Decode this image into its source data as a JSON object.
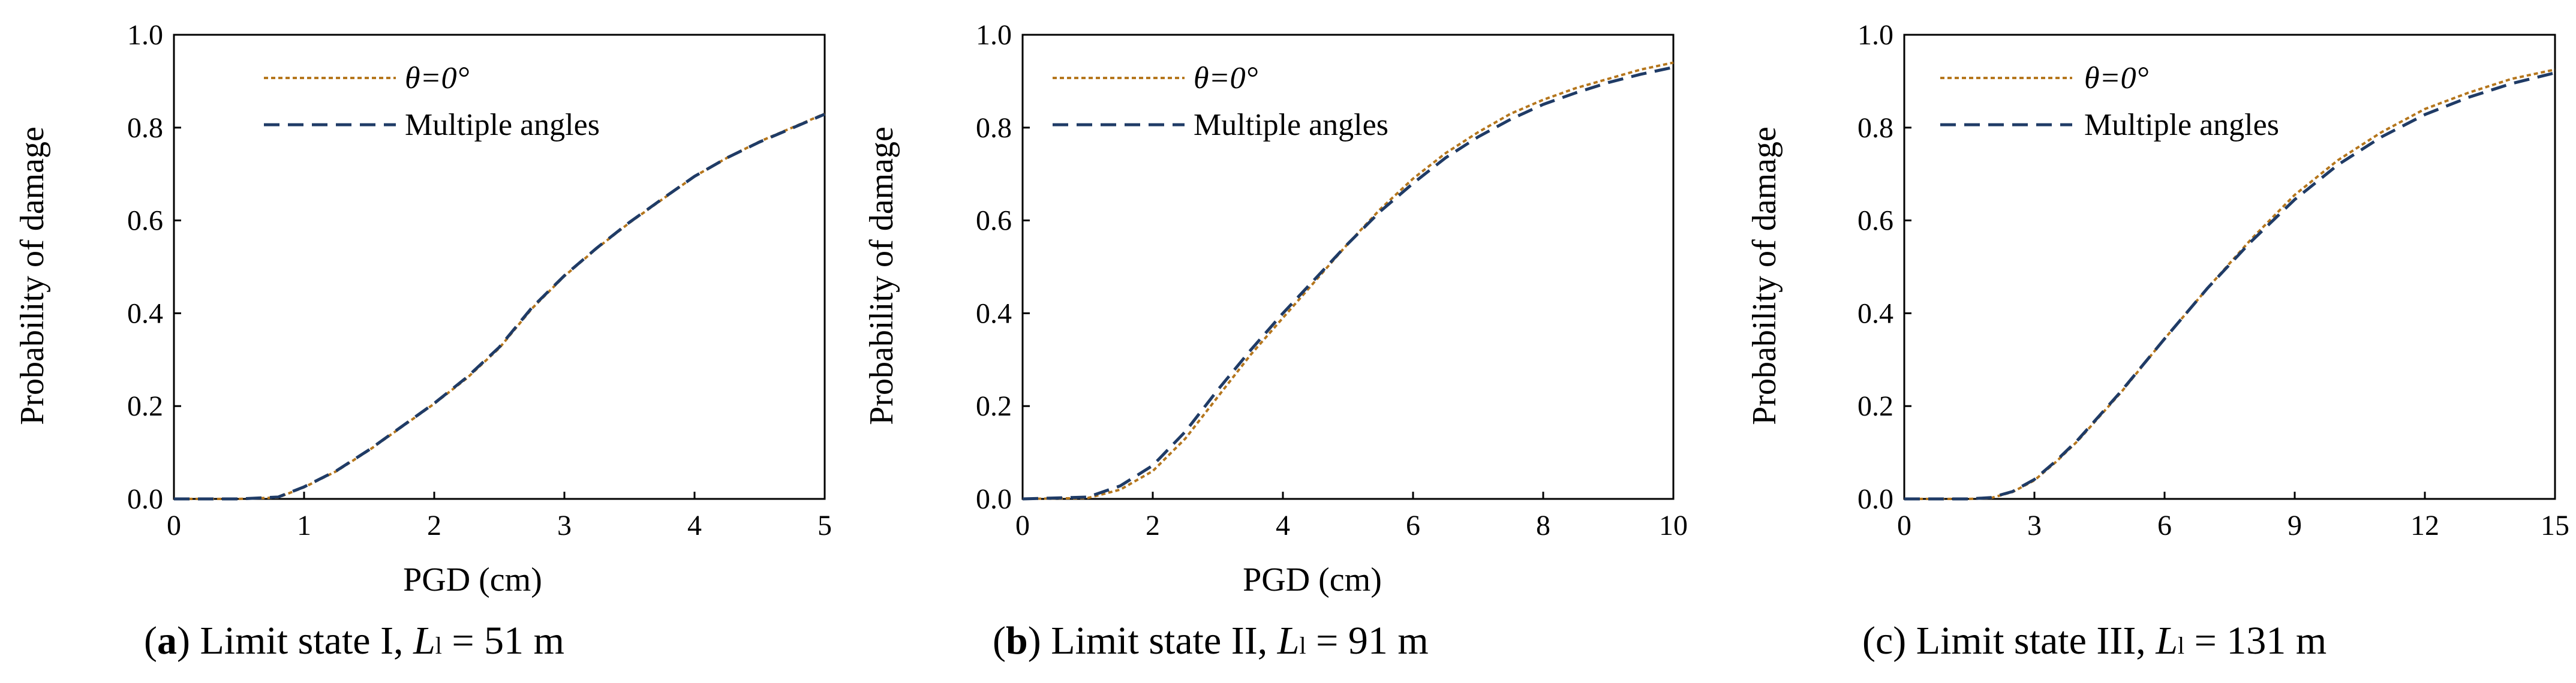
{
  "colors": {
    "theta0": "#b5761c",
    "multiple": "#1f3b66"
  },
  "chart_data": [
    {
      "type": "line",
      "caption": {
        "letter": "a",
        "text": " Limit state I, ",
        "L": "L",
        "sub": "l",
        "value": " = 51 m"
      },
      "xlabel": "PGD (cm)",
      "ylabel": "Probability of damage",
      "xlim": [
        0,
        5
      ],
      "ylim": [
        0,
        1.0
      ],
      "xticks": [
        0,
        1,
        2,
        3,
        4,
        5
      ],
      "xtick_labels": [
        "0",
        "1",
        "2",
        "3",
        "4",
        "5"
      ],
      "yticks": [
        0,
        0.2,
        0.4,
        0.6,
        0.8,
        1.0
      ],
      "ytick_labels": [
        "0.0",
        "0.2",
        "0.4",
        "0.6",
        "0.8",
        "1.0"
      ],
      "legend": [
        "θ=0°",
        "Multiple angles"
      ],
      "series": [
        {
          "name": "θ=0°",
          "x": [
            0,
            0.5,
            0.8,
            1.0,
            1.25,
            1.5,
            1.75,
            2.0,
            2.25,
            2.5,
            2.75,
            3.0,
            3.25,
            3.5,
            3.75,
            4.0,
            4.25,
            4.5,
            4.75,
            5.0
          ],
          "y": [
            0,
            0,
            0.003,
            0.025,
            0.06,
            0.105,
            0.155,
            0.205,
            0.26,
            0.325,
            0.41,
            0.48,
            0.54,
            0.595,
            0.645,
            0.695,
            0.735,
            0.77,
            0.8,
            0.83
          ]
        },
        {
          "name": "Multiple angles",
          "x": [
            0,
            0.5,
            0.8,
            1.0,
            1.25,
            1.5,
            1.75,
            2.0,
            2.25,
            2.5,
            2.75,
            3.0,
            3.25,
            3.5,
            3.75,
            4.0,
            4.25,
            4.5,
            4.75,
            5.0
          ],
          "y": [
            0,
            0,
            0.004,
            0.026,
            0.061,
            0.106,
            0.156,
            0.206,
            0.262,
            0.327,
            0.412,
            0.481,
            0.541,
            0.596,
            0.646,
            0.695,
            0.735,
            0.769,
            0.799,
            0.829
          ]
        }
      ]
    },
    {
      "type": "line",
      "caption": {
        "letter": "b",
        "text": " Limit state II, ",
        "L": "L",
        "sub": "l",
        "value": " = 91 m"
      },
      "xlabel": "PGD (cm)",
      "ylabel": "Probability of damage",
      "xlim": [
        0,
        10
      ],
      "ylim": [
        0,
        1.0
      ],
      "xticks": [
        0,
        2,
        4,
        6,
        8,
        10
      ],
      "xtick_labels": [
        "0",
        "2",
        "4",
        "6",
        "8",
        "10"
      ],
      "yticks": [
        0,
        0.2,
        0.4,
        0.6,
        0.8,
        1.0
      ],
      "ytick_labels": [
        "0.0",
        "0.2",
        "0.4",
        "0.6",
        "0.8",
        "1.0"
      ],
      "legend": [
        "θ=0°",
        "Multiple angles"
      ],
      "series": [
        {
          "name": "θ=0°",
          "x": [
            0,
            1.0,
            1.5,
            2.0,
            2.5,
            3.0,
            3.5,
            4.0,
            4.5,
            5.0,
            5.5,
            6.0,
            6.5,
            7.0,
            7.5,
            8.0,
            8.5,
            9.0,
            9.5,
            10.0
          ],
          "y": [
            0,
            0.002,
            0.02,
            0.06,
            0.13,
            0.22,
            0.31,
            0.39,
            0.47,
            0.55,
            0.625,
            0.69,
            0.745,
            0.79,
            0.83,
            0.86,
            0.885,
            0.905,
            0.925,
            0.94
          ]
        },
        {
          "name": "Multiple angles",
          "x": [
            0,
            1.0,
            1.5,
            2.0,
            2.5,
            3.0,
            3.5,
            4.0,
            4.5,
            5.0,
            5.5,
            6.0,
            6.5,
            7.0,
            7.5,
            8.0,
            8.5,
            9.0,
            9.5,
            10.0
          ],
          "y": [
            0,
            0.004,
            0.028,
            0.072,
            0.145,
            0.235,
            0.32,
            0.4,
            0.475,
            0.55,
            0.62,
            0.68,
            0.735,
            0.78,
            0.818,
            0.85,
            0.875,
            0.897,
            0.915,
            0.93
          ]
        }
      ]
    },
    {
      "type": "line",
      "caption": {
        "letter": "c",
        "text": " Limit state III, ",
        "L": "L",
        "sub": "l",
        "value": " = 131 m"
      },
      "xlabel": "",
      "ylabel": "Probability of damage",
      "xlim": [
        0,
        15
      ],
      "ylim": [
        0,
        1.0
      ],
      "xticks": [
        0,
        3,
        6,
        9,
        12,
        15
      ],
      "xtick_labels": [
        "0",
        "3",
        "6",
        "9",
        "12",
        "15"
      ],
      "yticks": [
        0,
        0.2,
        0.4,
        0.6,
        0.8,
        1.0
      ],
      "ytick_labels": [
        "0.0",
        "0.2",
        "0.4",
        "0.6",
        "0.8",
        "1.0"
      ],
      "legend": [
        "θ=0°",
        "Multiple angles"
      ],
      "series": [
        {
          "name": "θ=0°",
          "x": [
            0,
            1.5,
            2.0,
            2.5,
            3.0,
            3.5,
            4.0,
            5.0,
            6.0,
            7.0,
            8.0,
            9.0,
            10.0,
            11.0,
            12.0,
            13.0,
            14.0,
            15.0
          ],
          "y": [
            0,
            0,
            0.002,
            0.015,
            0.04,
            0.08,
            0.125,
            0.23,
            0.345,
            0.455,
            0.56,
            0.655,
            0.73,
            0.79,
            0.84,
            0.875,
            0.905,
            0.925
          ]
        },
        {
          "name": "Multiple angles",
          "x": [
            0,
            1.5,
            2.0,
            2.5,
            3.0,
            3.5,
            4.0,
            5.0,
            6.0,
            7.0,
            8.0,
            9.0,
            10.0,
            11.0,
            12.0,
            13.0,
            14.0,
            15.0
          ],
          "y": [
            0,
            0,
            0.003,
            0.016,
            0.042,
            0.082,
            0.127,
            0.232,
            0.345,
            0.455,
            0.555,
            0.645,
            0.72,
            0.78,
            0.828,
            0.865,
            0.895,
            0.918
          ]
        }
      ]
    }
  ]
}
